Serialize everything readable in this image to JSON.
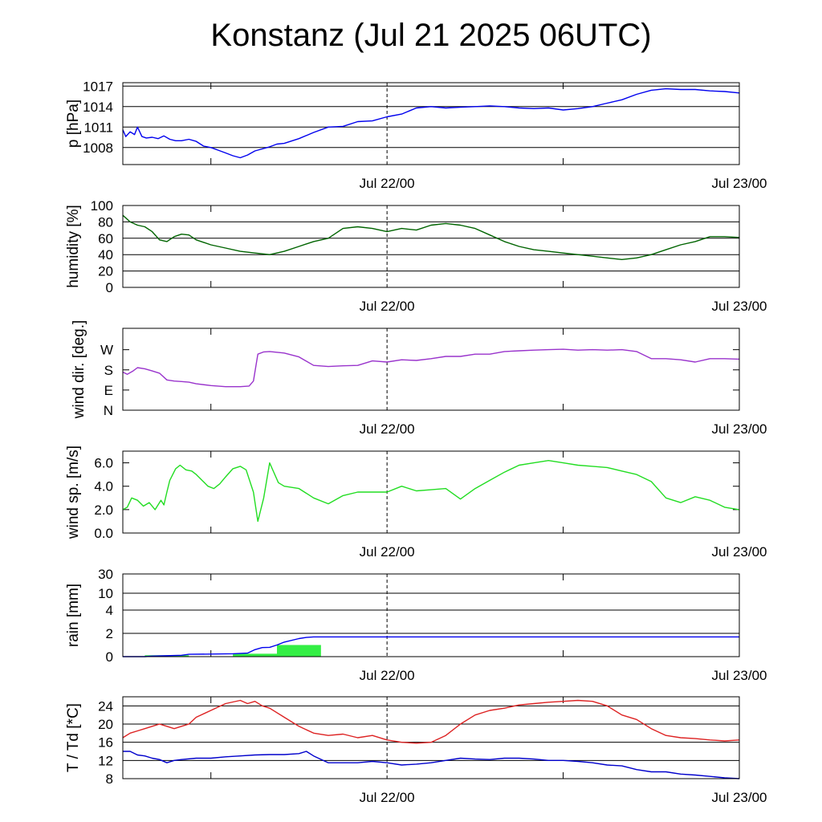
{
  "title": "Konstanz (Jul 21 2025 06UTC)",
  "chart_data": [
    {
      "type": "line",
      "ylabel": "p [hPa]",
      "yticks": [
        1008,
        1011,
        1014,
        1017
      ],
      "ylim": [
        1005.5,
        1017.5
      ],
      "grid": true,
      "x_tick_labels": [
        "Jul 22/00",
        "Jul 23/00"
      ],
      "x_unit": "hours since Jul 21 06UTC",
      "xlim": [
        0,
        42
      ],
      "series": [
        {
          "color": "#0000ee",
          "x": [
            0,
            0.2,
            0.5,
            0.8,
            1.0,
            1.3,
            1.6,
            2.0,
            2.4,
            2.8,
            3.2,
            3.6,
            4.0,
            4.5,
            5.0,
            5.5,
            6.0,
            6.5,
            7.0,
            7.5,
            8.0,
            8.5,
            9.0,
            9.5,
            10,
            10.5,
            11,
            12,
            13,
            14,
            15,
            16,
            17,
            18,
            19,
            20,
            21,
            22,
            23,
            24,
            25,
            26,
            27,
            28,
            29,
            30,
            31,
            32,
            33,
            34,
            35,
            36,
            37,
            38,
            39,
            40,
            41,
            42
          ],
          "values": [
            1010.6,
            1009.6,
            1010.3,
            1009.9,
            1011.0,
            1009.6,
            1009.4,
            1009.5,
            1009.3,
            1009.7,
            1009.2,
            1009.0,
            1009.0,
            1009.2,
            1008.9,
            1008.2,
            1008.0,
            1007.6,
            1007.2,
            1006.8,
            1006.5,
            1006.9,
            1007.5,
            1007.8,
            1008.1,
            1008.5,
            1008.6,
            1009.3,
            1010.2,
            1011.0,
            1011.1,
            1011.8,
            1011.9,
            1012.5,
            1012.9,
            1013.8,
            1014.0,
            1013.8,
            1013.9,
            1014.0,
            1014.1,
            1014.0,
            1013.8,
            1013.7,
            1013.8,
            1013.5,
            1013.7,
            1014.0,
            1014.5,
            1015.0,
            1015.8,
            1016.4,
            1016.6,
            1016.5,
            1016.5,
            1016.3,
            1016.2,
            1016.0
          ]
        }
      ]
    },
    {
      "type": "line",
      "ylabel": "humidity [%]",
      "yticks": [
        0,
        20,
        40,
        60,
        80,
        100
      ],
      "ylim": [
        0,
        100
      ],
      "grid": true,
      "x_tick_labels": [
        "Jul 22/00",
        "Jul 23/00"
      ],
      "xlim": [
        0,
        42
      ],
      "series": [
        {
          "color": "#006400",
          "x": [
            0,
            0.5,
            1,
            1.5,
            2,
            2.5,
            3,
            3.5,
            4,
            4.5,
            5,
            5.5,
            6,
            7,
            8,
            9,
            10,
            11,
            12,
            13,
            14,
            15,
            16,
            17,
            18,
            19,
            20,
            21,
            22,
            23,
            24,
            25,
            26,
            27,
            28,
            29,
            30,
            31,
            32,
            33,
            34,
            35,
            36,
            37,
            38,
            39,
            40,
            41,
            42
          ],
          "values": [
            88,
            80,
            76,
            74,
            68,
            58,
            56,
            62,
            65,
            64,
            58,
            55,
            52,
            48,
            44,
            42,
            40,
            44,
            50,
            56,
            60,
            72,
            74,
            72,
            68,
            72,
            70,
            76,
            78,
            76,
            72,
            64,
            56,
            50,
            46,
            44,
            42,
            40,
            38,
            36,
            34,
            36,
            40,
            46,
            52,
            56,
            62,
            62,
            61
          ]
        }
      ]
    },
    {
      "type": "line",
      "ylabel": "wind dir. [deg.]",
      "yticks": [
        "N",
        "E",
        "S",
        "W"
      ],
      "yticks_deg": [
        0,
        90,
        180,
        270
      ],
      "ylim": [
        0,
        360
      ],
      "x_tick_labels": [
        "Jul 22/00",
        "Jul 23/00"
      ],
      "xlim": [
        0,
        42
      ],
      "series": [
        {
          "color": "#9933cc",
          "x": [
            0,
            0.3,
            0.7,
            1,
            1.5,
            2,
            2.5,
            3,
            3.5,
            4,
            4.5,
            5,
            6,
            7,
            8,
            8.6,
            8.9,
            9.2,
            9.6,
            10,
            11,
            12,
            13,
            14,
            15,
            16,
            17,
            18,
            19,
            20,
            21,
            22,
            23,
            24,
            25,
            26,
            27,
            28,
            29,
            30,
            31,
            32,
            33,
            34,
            35,
            36,
            37,
            38,
            39,
            40,
            41,
            42
          ],
          "values": [
            170,
            160,
            175,
            190,
            185,
            175,
            165,
            135,
            130,
            128,
            125,
            118,
            110,
            105,
            105,
            108,
            130,
            250,
            260,
            262,
            255,
            238,
            200,
            195,
            198,
            200,
            220,
            215,
            225,
            222,
            230,
            240,
            240,
            250,
            250,
            262,
            265,
            268,
            270,
            272,
            268,
            270,
            268,
            270,
            262,
            230,
            230,
            225,
            215,
            230,
            230,
            228
          ]
        }
      ]
    },
    {
      "type": "line",
      "ylabel": "wind sp. [m/s]",
      "yticks": [
        0.0,
        2.0,
        4.0,
        6.0
      ],
      "ylim": [
        0,
        7
      ],
      "x_tick_labels": [
        "Jul 22/00",
        "Jul 23/00"
      ],
      "xlim": [
        0,
        42
      ],
      "series": [
        {
          "color": "#22dd22",
          "x": [
            0,
            0.3,
            0.6,
            1,
            1.4,
            1.8,
            2.2,
            2.6,
            2.8,
            3.0,
            3.2,
            3.6,
            3.9,
            4.3,
            4.7,
            5.0,
            5.4,
            5.8,
            6.2,
            6.6,
            7.0,
            7.5,
            8.0,
            8.4,
            8.9,
            9.2,
            9.6,
            10,
            10.6,
            11,
            12,
            13,
            14,
            15,
            16,
            17,
            18,
            19,
            20,
            21,
            22,
            23,
            24,
            25,
            26,
            27,
            28,
            29,
            30,
            31,
            32,
            33,
            34,
            35,
            36,
            37,
            38,
            39,
            40,
            41,
            42
          ],
          "values": [
            2.0,
            2.2,
            3.0,
            2.8,
            2.3,
            2.6,
            2.0,
            2.8,
            2.4,
            3.5,
            4.5,
            5.5,
            5.8,
            5.4,
            5.3,
            5.0,
            4.5,
            4.0,
            3.8,
            4.2,
            4.8,
            5.5,
            5.7,
            5.4,
            3.5,
            1.0,
            3.0,
            6.0,
            4.3,
            4.0,
            3.8,
            3.0,
            2.5,
            3.2,
            3.5,
            3.5,
            3.5,
            4.0,
            3.6,
            3.7,
            3.8,
            2.9,
            3.8,
            4.5,
            5.2,
            5.8,
            6.0,
            6.2,
            6.0,
            5.8,
            5.7,
            5.6,
            5.3,
            5.0,
            4.4,
            3.0,
            2.6,
            3.1,
            2.8,
            2.2,
            2.0
          ]
        }
      ]
    },
    {
      "type": "bar",
      "ylabel": "rain [mm]",
      "yticks": [
        0,
        2,
        4,
        10,
        30
      ],
      "yscale": "nonlinear",
      "ylim": [
        0,
        30
      ],
      "x_tick_labels": [
        "Jul 22/00",
        "Jul 23/00"
      ],
      "xlim": [
        0,
        42
      ],
      "bars": {
        "color": "#33ee44",
        "x_start": [
          1.5,
          7.5,
          10.5
        ],
        "x_end": [
          4.5,
          10.5,
          13.5
        ],
        "values": [
          0.12,
          0.25,
          1.0
        ]
      },
      "series": [
        {
          "name": "",
          "color": "#0000ee",
          "x": [
            0,
            1.5,
            2,
            4,
            4.5,
            6,
            7.5,
            8.5,
            9,
            9.5,
            10,
            10.5,
            11,
            12,
            12.5,
            13,
            13.5,
            42
          ],
          "values": [
            0,
            0,
            0.05,
            0.12,
            0.2,
            0.22,
            0.25,
            0.3,
            0.6,
            0.78,
            0.8,
            1.0,
            1.25,
            1.55,
            1.65,
            1.7,
            1.7,
            1.7
          ]
        }
      ]
    },
    {
      "type": "line",
      "ylabel": "T / Td [*C]",
      "yticks": [
        8,
        12,
        16,
        20,
        24
      ],
      "ylim": [
        8,
        26
      ],
      "grid": true,
      "x_tick_labels": [
        "Jul 22/00",
        "Jul 23/00"
      ],
      "xlim": [
        0,
        42
      ],
      "series": [
        {
          "name": "T",
          "color": "#dd2222",
          "x": [
            0,
            0.5,
            1,
            1.5,
            2,
            2.5,
            3,
            3.5,
            4,
            4.5,
            5,
            6,
            7,
            8,
            8.5,
            9,
            9.5,
            10,
            11,
            12,
            13,
            14,
            15,
            16,
            17,
            18,
            19,
            20,
            21,
            22,
            23,
            24,
            25,
            26,
            27,
            28,
            29,
            30,
            31,
            32,
            33,
            34,
            35,
            36,
            37,
            38,
            39,
            40,
            41,
            42
          ],
          "values": [
            17,
            18,
            18.5,
            19,
            19.5,
            20,
            19.5,
            19,
            19.5,
            20,
            21.5,
            23,
            24.5,
            25.2,
            24.5,
            25,
            24,
            23.5,
            21.5,
            19.5,
            18,
            17.5,
            17.8,
            17,
            17.5,
            16.5,
            16,
            15.8,
            16,
            17.5,
            20,
            22,
            23,
            23.5,
            24.2,
            24.5,
            24.8,
            25,
            25.2,
            25,
            24,
            22,
            21,
            19,
            17.5,
            17,
            16.8,
            16.5,
            16.3,
            16.5
          ]
        },
        {
          "name": "Td",
          "color": "#0000cc",
          "x": [
            0,
            0.5,
            1,
            1.5,
            2,
            2.5,
            3,
            3.5,
            4,
            5,
            6,
            7,
            8,
            9,
            10,
            11,
            12,
            12.5,
            13,
            14,
            15,
            16,
            17,
            18,
            19,
            20,
            21,
            22,
            23,
            24,
            25,
            26,
            27,
            28,
            29,
            30,
            31,
            32,
            33,
            34,
            35,
            36,
            37,
            38,
            39,
            40,
            41,
            42
          ],
          "values": [
            14,
            14,
            13.2,
            13,
            12.5,
            12.2,
            11.5,
            12,
            12.2,
            12.5,
            12.5,
            12.8,
            13,
            13.2,
            13.3,
            13.3,
            13.5,
            14,
            13,
            11.5,
            11.5,
            11.5,
            11.8,
            11.5,
            11,
            11.2,
            11.5,
            12,
            12.5,
            12.3,
            12.2,
            12.5,
            12.5,
            12.3,
            12,
            12,
            11.8,
            11.5,
            11,
            10.8,
            10,
            9.5,
            9.5,
            9,
            8.8,
            8.5,
            8.2,
            8
          ]
        }
      ]
    }
  ]
}
